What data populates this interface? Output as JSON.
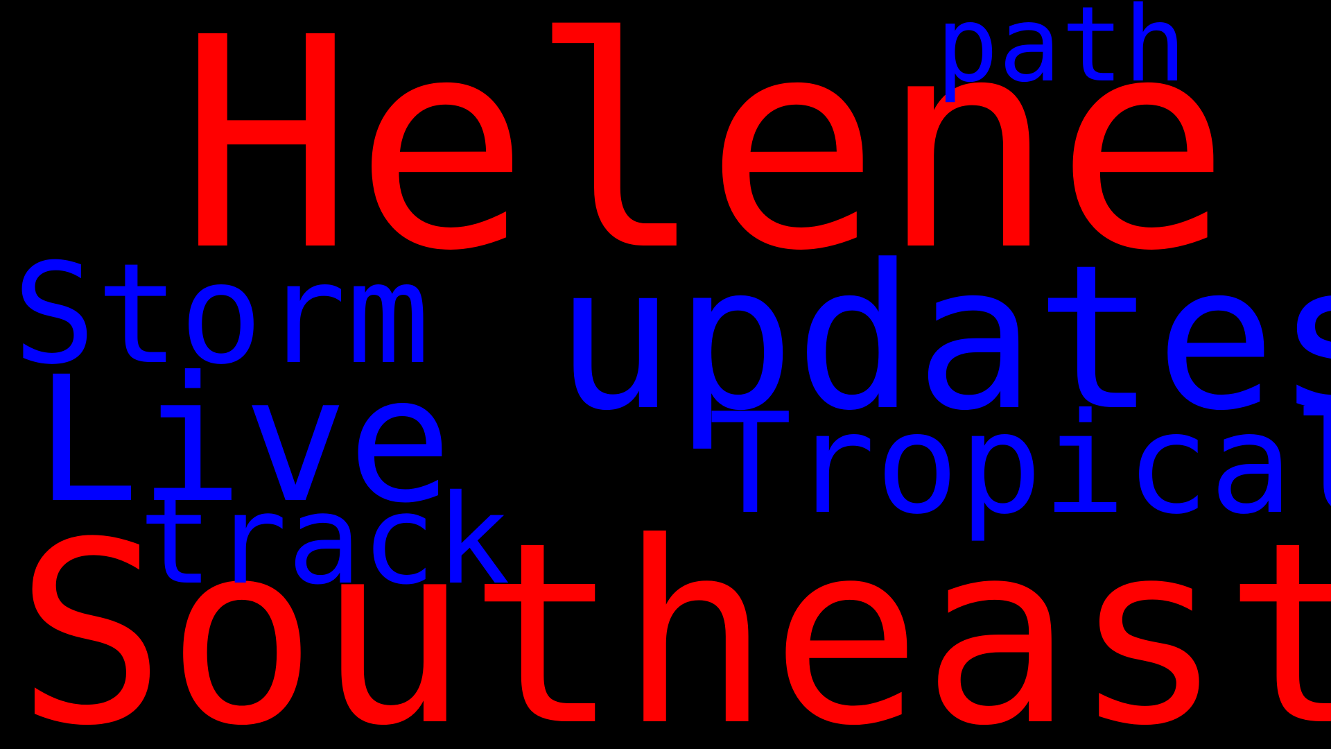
{
  "background_color": "#000000",
  "words": [
    {
      "text": "Helene",
      "color": "#ff0000"
    },
    {
      "text": "Southeast",
      "color": "#ff0000"
    },
    {
      "text": "updates",
      "color": "#0000ff"
    },
    {
      "text": "Live",
      "color": "#0000ff"
    },
    {
      "text": "Storm",
      "color": "#0000ff"
    },
    {
      "text": "Tropical",
      "color": "#0000ff"
    },
    {
      "text": "track",
      "color": "#0000ff"
    },
    {
      "text": "path",
      "color": "#0000ff"
    }
  ]
}
